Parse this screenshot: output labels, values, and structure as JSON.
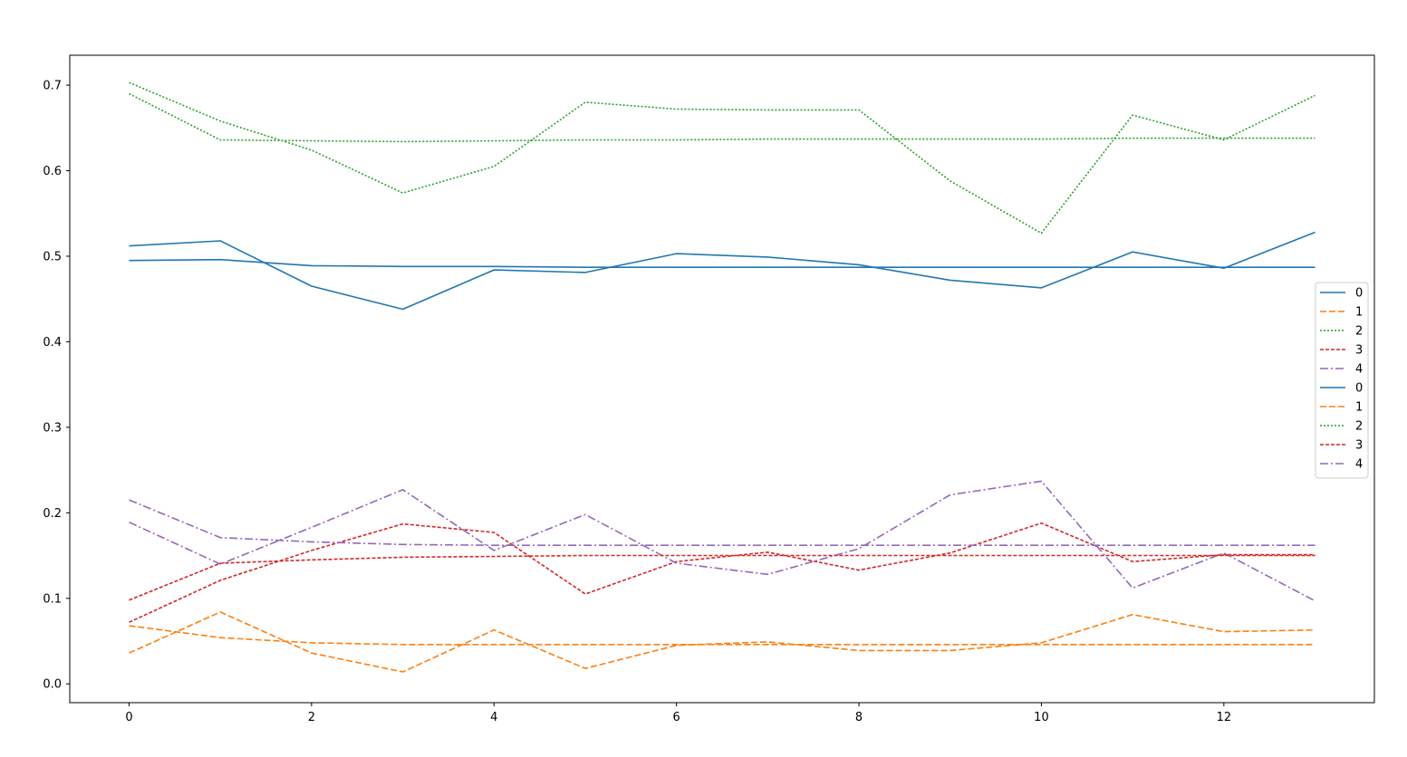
{
  "chart_data": {
    "type": "line",
    "title": "",
    "xlabel": "",
    "ylabel": "",
    "xlim": [
      -0.65,
      13.65
    ],
    "ylim": [
      -0.022,
      0.735
    ],
    "x_ticks": [
      0,
      2,
      4,
      6,
      8,
      10,
      12
    ],
    "x_tick_labels": [
      "0",
      "2",
      "4",
      "6",
      "8",
      "10",
      "12"
    ],
    "y_ticks": [
      0.0,
      0.1,
      0.2,
      0.3,
      0.4,
      0.5,
      0.6,
      0.7
    ],
    "y_tick_labels": [
      "0.0",
      "0.1",
      "0.2",
      "0.3",
      "0.4",
      "0.5",
      "0.6",
      "0.7"
    ],
    "grid": false,
    "legend_position": "right",
    "x": [
      0,
      1,
      2,
      3,
      4,
      5,
      6,
      7,
      8,
      9,
      10,
      11,
      12,
      13
    ],
    "series": [
      {
        "name": "0",
        "color": "#1f77b4",
        "dash": "solid",
        "values": [
          0.512,
          0.518,
          0.465,
          0.438,
          0.484,
          0.481,
          0.503,
          0.499,
          0.49,
          0.472,
          0.463,
          0.505,
          0.486,
          0.528
        ]
      },
      {
        "name": "1",
        "color": "#ff7f0e",
        "dash": "dashed",
        "values": [
          0.036,
          0.084,
          0.036,
          0.014,
          0.063,
          0.018,
          0.045,
          0.049,
          0.039,
          0.039,
          0.048,
          0.081,
          0.061,
          0.063
        ]
      },
      {
        "name": "2",
        "color": "#2ca02c",
        "dash": "dotted",
        "values": [
          0.703,
          0.658,
          0.624,
          0.574,
          0.605,
          0.68,
          0.672,
          0.671,
          0.671,
          0.588,
          0.527,
          0.665,
          0.636,
          0.688
        ]
      },
      {
        "name": "3",
        "color": "#d62728",
        "dash": "densedash",
        "values": [
          0.072,
          0.121,
          0.156,
          0.187,
          0.177,
          0.105,
          0.143,
          0.154,
          0.133,
          0.153,
          0.188,
          0.143,
          0.151,
          0.151
        ]
      },
      {
        "name": "4",
        "color": "#9467bd",
        "dash": "dashdot",
        "values": [
          0.189,
          0.14,
          0.183,
          0.227,
          0.156,
          0.198,
          0.141,
          0.128,
          0.158,
          0.221,
          0.237,
          0.112,
          0.153,
          0.097
        ]
      },
      {
        "name": "0",
        "color": "#1f77b4",
        "dash": "solid",
        "values": [
          0.495,
          0.496,
          0.489,
          0.488,
          0.488,
          0.487,
          0.487,
          0.487,
          0.487,
          0.487,
          0.487,
          0.487,
          0.487,
          0.487
        ]
      },
      {
        "name": "1",
        "color": "#ff7f0e",
        "dash": "dashed",
        "values": [
          0.068,
          0.054,
          0.048,
          0.046,
          0.046,
          0.046,
          0.046,
          0.046,
          0.046,
          0.046,
          0.046,
          0.046,
          0.046,
          0.046
        ]
      },
      {
        "name": "2",
        "color": "#2ca02c",
        "dash": "dotted",
        "values": [
          0.69,
          0.636,
          0.635,
          0.634,
          0.635,
          0.636,
          0.636,
          0.637,
          0.637,
          0.637,
          0.637,
          0.638,
          0.638,
          0.638
        ]
      },
      {
        "name": "3",
        "color": "#d62728",
        "dash": "densedash",
        "values": [
          0.098,
          0.141,
          0.145,
          0.148,
          0.149,
          0.15,
          0.15,
          0.15,
          0.15,
          0.15,
          0.15,
          0.15,
          0.15,
          0.15
        ]
      },
      {
        "name": "4",
        "color": "#9467bd",
        "dash": "dashdot",
        "values": [
          0.215,
          0.171,
          0.166,
          0.163,
          0.162,
          0.162,
          0.162,
          0.162,
          0.162,
          0.162,
          0.162,
          0.162,
          0.162,
          0.162
        ]
      }
    ]
  }
}
